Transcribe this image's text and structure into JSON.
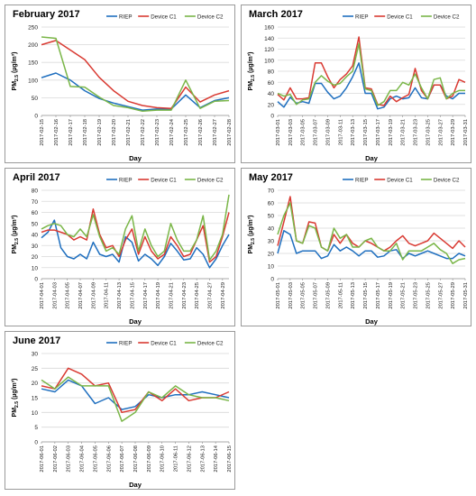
{
  "chart_data": [
    {
      "type": "line",
      "title": "February 2017",
      "xlabel": "Day",
      "ylabel": "PM2.5 (µg/m³)",
      "ylabel_main": "PM",
      "ylabel_sub": "2.5",
      "ylabel_unit": " (µg/m³)",
      "ylim": [
        0,
        250
      ],
      "yticks": [
        0,
        50,
        100,
        150,
        200,
        250
      ],
      "legend_position": "top-right",
      "grid": "horizontal",
      "categories": [
        "2017-02-15",
        "2017-02-16",
        "2017-02-17",
        "2017-02-18",
        "2017-02-19",
        "2017-02-20",
        "2017-02-21",
        "2017-02-22",
        "2017-02-23",
        "2017-02-24",
        "2017-02-25",
        "2017-02-26",
        "2017-02-27",
        "2017-02-28"
      ],
      "series": [
        {
          "name": "RIEP",
          "color": "#1f6fbf",
          "values": [
            107,
            120,
            100,
            70,
            48,
            35,
            25,
            15,
            18,
            18,
            58,
            22,
            42,
            50
          ]
        },
        {
          "name": "Device C1",
          "color": "#d93a32",
          "values": [
            200,
            212,
            185,
            158,
            108,
            70,
            40,
            28,
            22,
            20,
            80,
            38,
            58,
            70
          ]
        },
        {
          "name": "Device C2",
          "color": "#7ab648",
          "values": [
            222,
            218,
            82,
            80,
            52,
            28,
            22,
            12,
            15,
            15,
            100,
            20,
            40,
            42
          ]
        }
      ]
    },
    {
      "type": "line",
      "title": "March 2017",
      "xlabel": "Day",
      "ylabel": "PM2.5 (µg/m³)",
      "ylabel_main": "PM",
      "ylabel_sub": "2.5",
      "ylabel_unit": " (µg/m³)",
      "ylim": [
        0,
        160
      ],
      "yticks": [
        0,
        20,
        40,
        60,
        80,
        100,
        120,
        140,
        160
      ],
      "legend_position": "top-right",
      "grid": "horizontal",
      "categories": [
        "2017-03-01",
        "2017-03-02",
        "2017-03-03",
        "2017-03-04",
        "2017-03-05",
        "2017-03-06",
        "2017-03-07",
        "2017-03-08",
        "2017-03-09",
        "2017-03-10",
        "2017-03-11",
        "2017-03-12",
        "2017-03-13",
        "2017-03-14",
        "2017-03-15",
        "2017-03-16",
        "2017-03-17",
        "2017-03-18",
        "2017-03-19",
        "2017-03-20",
        "2017-03-21",
        "2017-03-22",
        "2017-03-23",
        "2017-03-24",
        "2017-03-25",
        "2017-03-26",
        "2017-03-27",
        "2017-03-28",
        "2017-03-29",
        "2017-03-30",
        "2017-03-31"
      ],
      "x_tick_labels": [
        "2017-03-01",
        "2017-03-03",
        "2017-03-05",
        "2017-03-07",
        "2017-03-09",
        "2017-03-11",
        "2017-03-13",
        "2017-03-15",
        "2017-03-17",
        "2017-03-19",
        "2017-03-21",
        "2017-03-23",
        "2017-03-25",
        "2017-03-27",
        "2017-03-29",
        "2017-03-31"
      ],
      "series": [
        {
          "name": "RIEP",
          "color": "#1f6fbf",
          "values": [
            25,
            15,
            33,
            22,
            25,
            22,
            58,
            58,
            42,
            30,
            35,
            50,
            70,
            95,
            40,
            40,
            12,
            15,
            30,
            35,
            30,
            32,
            50,
            32,
            30,
            55,
            55,
            35,
            30,
            40,
            40
          ]
        },
        {
          "name": "Device C1",
          "color": "#d93a32",
          "values": [
            38,
            28,
            50,
            30,
            30,
            32,
            95,
            95,
            70,
            50,
            65,
            75,
            90,
            142,
            50,
            48,
            20,
            18,
            35,
            25,
            32,
            38,
            85,
            45,
            30,
            55,
            55,
            30,
            35,
            65,
            60
          ]
        },
        {
          "name": "Device C2",
          "color": "#7ab648",
          "values": [
            40,
            35,
            38,
            20,
            28,
            30,
            60,
            72,
            62,
            55,
            58,
            70,
            80,
            130,
            48,
            45,
            18,
            25,
            45,
            45,
            60,
            55,
            75,
            50,
            30,
            65,
            68,
            30,
            40,
            45,
            45
          ]
        }
      ]
    },
    {
      "type": "line",
      "title": "April 2017",
      "xlabel": "Day",
      "ylabel": "PM2.5 (µg/m³)",
      "ylabel_main": "PM",
      "ylabel_sub": "2.5",
      "ylabel_unit": " (µg/m³)",
      "ylim": [
        0,
        80
      ],
      "yticks": [
        0,
        10,
        20,
        30,
        40,
        50,
        60,
        70,
        80
      ],
      "legend_position": "top-right",
      "grid": "horizontal",
      "categories": [
        "2017-04-01",
        "2017-04-02",
        "2017-04-03",
        "2017-04-04",
        "2017-04-05",
        "2017-04-06",
        "2017-04-07",
        "2017-04-08",
        "2017-04-09",
        "2017-04-10",
        "2017-04-11",
        "2017-04-12",
        "2017-04-13",
        "2017-04-14",
        "2017-04-15",
        "2017-04-16",
        "2017-04-17",
        "2017-04-18",
        "2017-04-19",
        "2017-04-20",
        "2017-04-21",
        "2017-04-22",
        "2017-04-23",
        "2017-04-24",
        "2017-04-25",
        "2017-04-26",
        "2017-04-27",
        "2017-04-28",
        "2017-04-29",
        "2017-04-30"
      ],
      "x_tick_labels": [
        "2017-04-01",
        "2017-04-03",
        "2017-04-05",
        "2017-04-07",
        "2017-04-09",
        "2017-04-11",
        "2017-04-13",
        "2017-04-15",
        "2017-04-17",
        "2017-04-19",
        "2017-04-21",
        "2017-04-23",
        "2017-04-25",
        "2017-04-27",
        "2017-04-29"
      ],
      "series": [
        {
          "name": "RIEP",
          "color": "#1f6fbf",
          "values": [
            37,
            42,
            53,
            28,
            20,
            18,
            22,
            18,
            33,
            22,
            20,
            22,
            15,
            38,
            33,
            16,
            22,
            18,
            12,
            20,
            32,
            25,
            17,
            18,
            28,
            22,
            10,
            18,
            30,
            40
          ]
        },
        {
          "name": "Device C1",
          "color": "#d93a32",
          "values": [
            42,
            44,
            44,
            42,
            40,
            35,
            38,
            35,
            63,
            40,
            28,
            30,
            20,
            35,
            45,
            22,
            38,
            25,
            18,
            22,
            38,
            30,
            20,
            22,
            35,
            48,
            15,
            20,
            38,
            60
          ]
        },
        {
          "name": "Device C2",
          "color": "#7ab648",
          "values": [
            45,
            48,
            50,
            48,
            40,
            38,
            45,
            38,
            58,
            38,
            25,
            28,
            22,
            45,
            57,
            25,
            45,
            30,
            20,
            25,
            50,
            35,
            25,
            25,
            35,
            57,
            17,
            25,
            40,
            76
          ]
        }
      ]
    },
    {
      "type": "line",
      "title": "May 2017",
      "xlabel": "Day",
      "ylabel": "PM2.5 (µg/m³)",
      "ylabel_main": "PM",
      "ylabel_sub": "2.5",
      "ylabel_unit": " (µg/m³)",
      "ylim": [
        0,
        70
      ],
      "yticks": [
        0,
        10,
        20,
        30,
        40,
        50,
        60,
        70
      ],
      "legend_position": "top-right",
      "grid": "horizontal",
      "categories": [
        "2017-05-01",
        "2017-05-02",
        "2017-05-03",
        "2017-05-04",
        "2017-05-05",
        "2017-05-06",
        "2017-05-07",
        "2017-05-08",
        "2017-05-09",
        "2017-05-10",
        "2017-05-11",
        "2017-05-12",
        "2017-05-13",
        "2017-05-14",
        "2017-05-15",
        "2017-05-16",
        "2017-05-17",
        "2017-05-18",
        "2017-05-19",
        "2017-05-20",
        "2017-05-21",
        "2017-05-22",
        "2017-05-23",
        "2017-05-24",
        "2017-05-25",
        "2017-05-26",
        "2017-05-27",
        "2017-05-28",
        "2017-05-29",
        "2017-05-30",
        "2017-05-31"
      ],
      "x_tick_labels": [
        "2017-05-01",
        "2017-05-03",
        "2017-05-05",
        "2017-05-07",
        "2017-05-09",
        "2017-05-11",
        "2017-05-13",
        "2017-05-15",
        "2017-05-17",
        "2017-05-19",
        "2017-05-21",
        "2017-05-23",
        "2017-05-25",
        "2017-05-27",
        "2017-05-29",
        "2017-05-31"
      ],
      "series": [
        {
          "name": "RIEP",
          "color": "#1f6fbf",
          "values": [
            20,
            38,
            35,
            20,
            22,
            22,
            22,
            16,
            18,
            27,
            22,
            25,
            22,
            18,
            22,
            22,
            17,
            18,
            22,
            23,
            16,
            20,
            18,
            20,
            22,
            20,
            18,
            16,
            16,
            20,
            18
          ]
        },
        {
          "name": "Device C1",
          "color": "#d93a32",
          "values": [
            26,
            45,
            65,
            30,
            28,
            45,
            44,
            25,
            22,
            35,
            28,
            35,
            28,
            25,
            30,
            28,
            25,
            22,
            25,
            30,
            34,
            28,
            26,
            28,
            30,
            36,
            32,
            28,
            24,
            30,
            25
          ]
        },
        {
          "name": "Device C2",
          "color": "#7ab648",
          "values": [
            35,
            50,
            60,
            30,
            28,
            42,
            40,
            25,
            22,
            40,
            32,
            35,
            25,
            25,
            30,
            32,
            25,
            22,
            22,
            28,
            15,
            22,
            22,
            22,
            25,
            28,
            23,
            20,
            12,
            15,
            16
          ]
        }
      ]
    },
    {
      "type": "line",
      "title": "June 2017",
      "xlabel": "Day",
      "ylabel": "PM2.5 (µg/m³)",
      "ylabel_main": "PM",
      "ylabel_sub": "2.5",
      "ylabel_unit": " (µg/m³)",
      "ylim": [
        0,
        30
      ],
      "yticks": [
        0,
        5,
        10,
        15,
        20,
        25,
        30
      ],
      "legend_position": "top-right",
      "grid": "horizontal",
      "categories": [
        "2017-06-01",
        "2017-06-02",
        "2017-06-03",
        "2017-06-04",
        "2017-06-05",
        "2017-06-06",
        "2017-06-07",
        "2017-06-08",
        "2017-06-09",
        "2017-06-10",
        "2017-06-11",
        "2017-06-12",
        "2017-06-13",
        "2017-06-14",
        "2017-06-15"
      ],
      "series": [
        {
          "name": "RIEP",
          "color": "#1f6fbf",
          "values": [
            18,
            17,
            21,
            19,
            13,
            15,
            11,
            12,
            16,
            15,
            16,
            16,
            17,
            16,
            15
          ]
        },
        {
          "name": "Device C1",
          "color": "#d93a32",
          "values": [
            19,
            18,
            25,
            23,
            19,
            20,
            10,
            11,
            17,
            14,
            18,
            14,
            15,
            15,
            17
          ]
        },
        {
          "name": "Device C2",
          "color": "#7ab648",
          "values": [
            21,
            18,
            22,
            19,
            19,
            19,
            7,
            10,
            17,
            15,
            19,
            16,
            15,
            15,
            14
          ]
        }
      ]
    }
  ]
}
